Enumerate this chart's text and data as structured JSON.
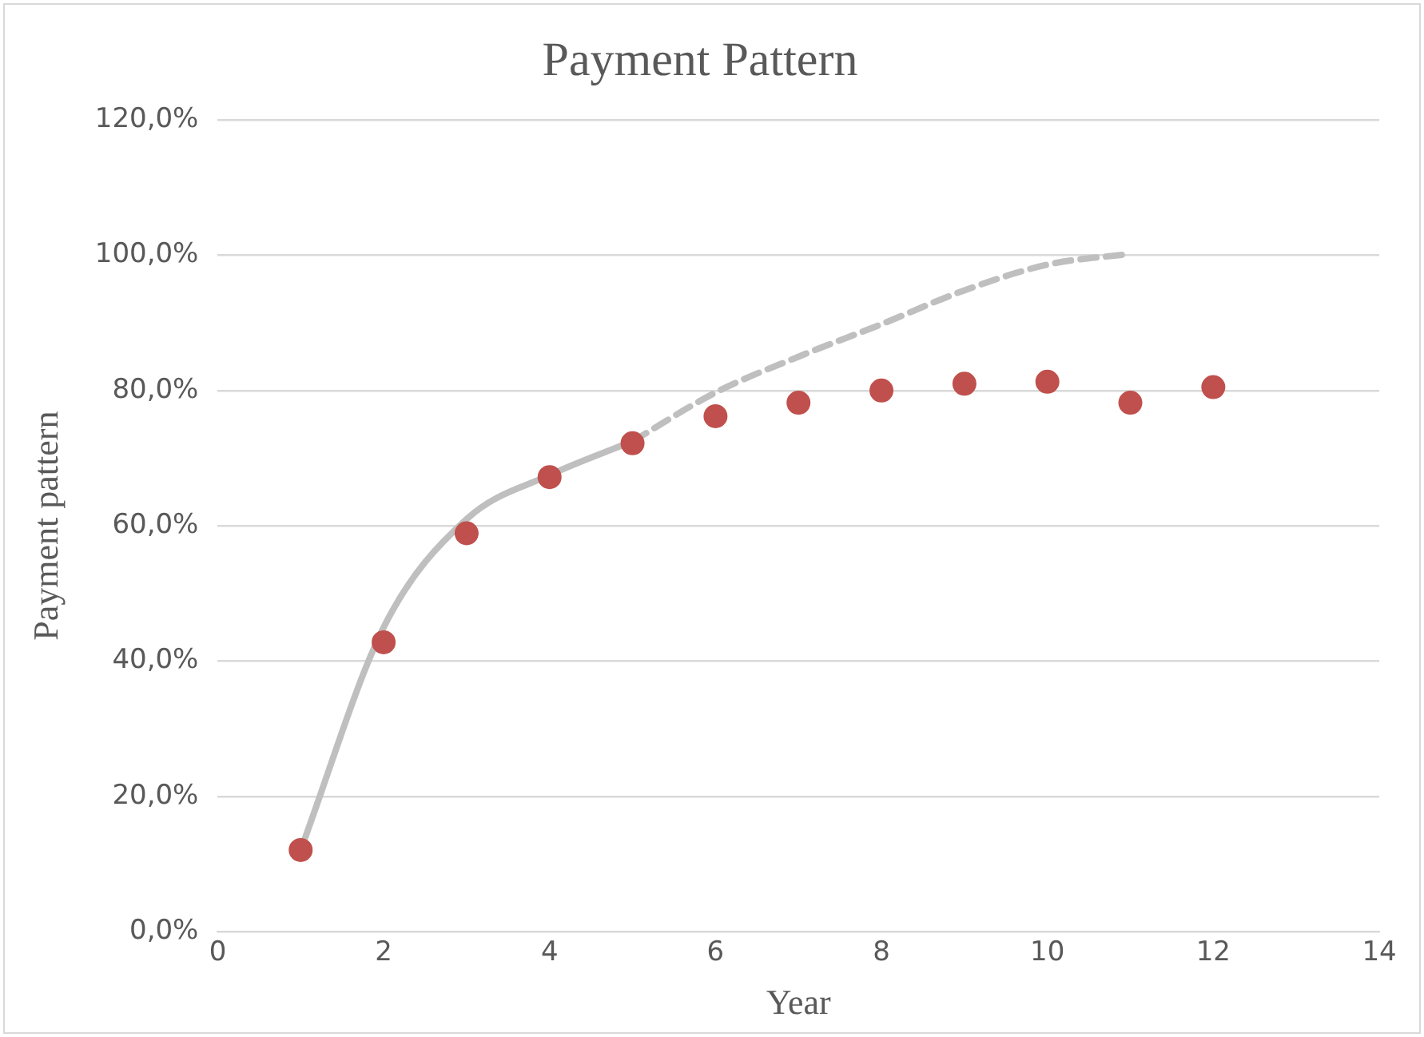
{
  "chart_data": {
    "type": "scatter",
    "title": "Payment Pattern",
    "xlabel": "Year",
    "ylabel": "Payment pattern",
    "xlim": [
      0,
      14
    ],
    "xticks": [
      0,
      2,
      4,
      6,
      8,
      10,
      12,
      14
    ],
    "ylim": [
      0,
      120
    ],
    "yticks": [
      {
        "value": 0,
        "label": "0,0%"
      },
      {
        "value": 20,
        "label": "20,0%"
      },
      {
        "value": 40,
        "label": "40,0%"
      },
      {
        "value": 60,
        "label": "60,0%"
      },
      {
        "value": 80,
        "label": "80,0%"
      },
      {
        "value": 100,
        "label": "100,0%"
      },
      {
        "value": 120,
        "label": "120,0%"
      }
    ],
    "grid": "y",
    "legend": false,
    "series": [
      {
        "type": "line",
        "color": "#bfbfbf",
        "line_style": "solid",
        "marker": "none",
        "x": [
          1,
          2,
          3,
          4,
          5
        ],
        "values": [
          12.1,
          45,
          61,
          67.5,
          72.5
        ]
      },
      {
        "type": "line",
        "color": "#bfbfbf",
        "line_style": "dashed",
        "marker": "none",
        "x": [
          5,
          6,
          7,
          8,
          9,
          10,
          11
        ],
        "values": [
          72.5,
          79.7,
          85,
          89.8,
          94.8,
          98.6,
          100.2
        ]
      },
      {
        "type": "scatter",
        "color": "#c0504d",
        "marker": "circle",
        "x": [
          1,
          2,
          3,
          4,
          5,
          6,
          7,
          8,
          9,
          10,
          11,
          12
        ],
        "values": [
          12.1,
          42.8,
          58.9,
          67.2,
          72.2,
          76.2,
          78.2,
          80.0,
          81.0,
          81.3,
          78.2,
          80.5
        ]
      }
    ]
  }
}
